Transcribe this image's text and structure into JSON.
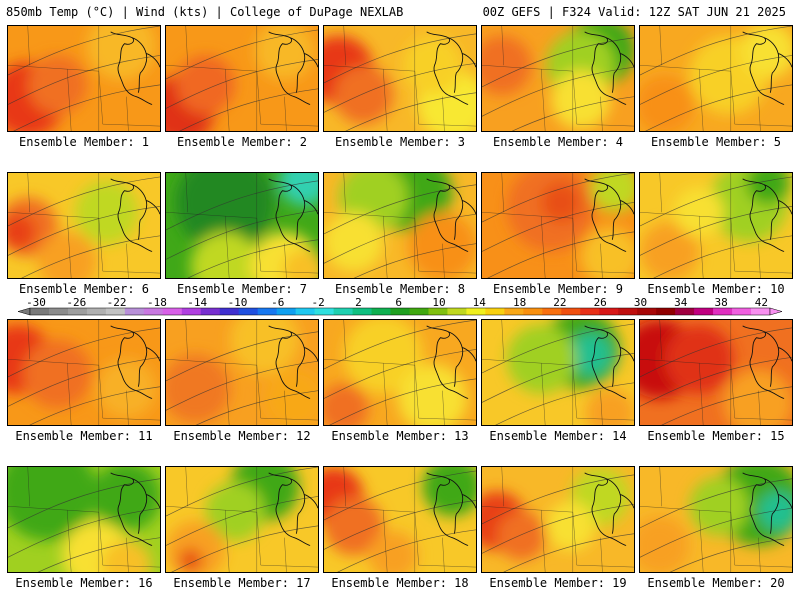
{
  "header": {
    "left": "850mb Temp (°C) | Wind (kts) | College of DuPage NEXLAB",
    "right": "00Z GEFS | F324 Valid: 12Z SAT JUN 21 2025"
  },
  "colorbar": {
    "ticks": [
      "-30",
      "-26",
      "-22",
      "-18",
      "-14",
      "-10",
      "-6",
      "-2",
      "2",
      "6",
      "10",
      "14",
      "18",
      "22",
      "26",
      "30",
      "34",
      "38",
      "42"
    ],
    "colors": [
      "#7a7a7a",
      "#8c8c8c",
      "#9e9e9e",
      "#b0b0b0",
      "#c2c2c2",
      "#b890d8",
      "#c878e0",
      "#d860e8",
      "#b040e0",
      "#7830d0",
      "#4030d0",
      "#2050e0",
      "#1878f0",
      "#10a0f0",
      "#20c8f0",
      "#30e0e0",
      "#20d0b0",
      "#10c080",
      "#10b050",
      "#20a020",
      "#40a810",
      "#80c010",
      "#c0d820",
      "#f0f020",
      "#f8d010",
      "#f8a818",
      "#f89010",
      "#f87010",
      "#f05010",
      "#e83018",
      "#d81818",
      "#c01010",
      "#a80808",
      "#900000",
      "#a00040",
      "#c00080",
      "#e030c0",
      "#f060e0",
      "#f890f0"
    ]
  },
  "panels": [
    {
      "label": "Ensemble Member: 1",
      "base": "#f89818",
      "blobs": [
        {
          "c": "#e83818",
          "cx": 20,
          "cy": 75,
          "r": 38
        },
        {
          "c": "#f07020",
          "cx": 50,
          "cy": 60,
          "r": 30
        },
        {
          "c": "#f8b828",
          "cx": 115,
          "cy": 20,
          "r": 35
        }
      ]
    },
    {
      "label": "Ensemble Member: 2",
      "base": "#f89818",
      "blobs": [
        {
          "c": "#e03018",
          "cx": 15,
          "cy": 85,
          "r": 35
        },
        {
          "c": "#f06820",
          "cx": 40,
          "cy": 60,
          "r": 30
        },
        {
          "c": "#f8b828",
          "cx": 120,
          "cy": 25,
          "r": 30
        }
      ]
    },
    {
      "label": "Ensemble Member: 3",
      "base": "#f8b828",
      "blobs": [
        {
          "c": "#e83818",
          "cx": 15,
          "cy": 45,
          "r": 35
        },
        {
          "c": "#f07020",
          "cx": 40,
          "cy": 70,
          "r": 30
        },
        {
          "c": "#f8e830",
          "cx": 130,
          "cy": 80,
          "r": 35
        },
        {
          "c": "#f8d028",
          "cx": 110,
          "cy": 40,
          "r": 30
        }
      ]
    },
    {
      "label": "Ensemble Member: 4",
      "base": "#f8a020",
      "blobs": [
        {
          "c": "#40a818",
          "cx": 120,
          "cy": 25,
          "r": 35
        },
        {
          "c": "#a0d020",
          "cx": 100,
          "cy": 40,
          "r": 35
        },
        {
          "c": "#f8e030",
          "cx": 100,
          "cy": 75,
          "r": 30
        },
        {
          "c": "#f07020",
          "cx": 20,
          "cy": 40,
          "r": 30
        }
      ]
    },
    {
      "label": "Ensemble Member: 5",
      "base": "#f8a820",
      "blobs": [
        {
          "c": "#f8d028",
          "cx": 90,
          "cy": 50,
          "r": 40
        },
        {
          "c": "#f8e030",
          "cx": 130,
          "cy": 25,
          "r": 28
        },
        {
          "c": "#f89018",
          "cx": 25,
          "cy": 80,
          "r": 30
        }
      ]
    },
    {
      "label": "Ensemble Member: 6",
      "base": "#f8c828",
      "blobs": [
        {
          "c": "#f07020",
          "cx": 20,
          "cy": 55,
          "r": 30
        },
        {
          "c": "#e84018",
          "cx": 10,
          "cy": 60,
          "r": 18
        },
        {
          "c": "#c0d820",
          "cx": 100,
          "cy": 40,
          "r": 32
        },
        {
          "c": "#f8a020",
          "cx": 60,
          "cy": 90,
          "r": 30
        }
      ]
    },
    {
      "label": "Ensemble Member: 7",
      "base": "#40a818",
      "blobs": [
        {
          "c": "#208820",
          "cx": 60,
          "cy": 30,
          "r": 50
        },
        {
          "c": "#30d0b0",
          "cx": 140,
          "cy": 8,
          "r": 25
        },
        {
          "c": "#c0d820",
          "cx": 60,
          "cy": 95,
          "r": 35
        },
        {
          "c": "#f8e030",
          "cx": 120,
          "cy": 95,
          "r": 35
        },
        {
          "c": "#f8c028",
          "cx": 140,
          "cy": 100,
          "r": 22
        }
      ]
    },
    {
      "label": "Ensemble Member: 8",
      "base": "#f8b828",
      "blobs": [
        {
          "c": "#40a818",
          "cx": 90,
          "cy": 20,
          "r": 40
        },
        {
          "c": "#a0d020",
          "cx": 50,
          "cy": 25,
          "r": 35
        },
        {
          "c": "#f8e030",
          "cx": 30,
          "cy": 70,
          "r": 30
        },
        {
          "c": "#f89018",
          "cx": 120,
          "cy": 75,
          "r": 35
        }
      ]
    },
    {
      "label": "Ensemble Member: 9",
      "base": "#f89018",
      "blobs": [
        {
          "c": "#f07020",
          "cx": 70,
          "cy": 35,
          "r": 45
        },
        {
          "c": "#e85018",
          "cx": 80,
          "cy": 30,
          "r": 20
        },
        {
          "c": "#c0d820",
          "cx": 135,
          "cy": 15,
          "r": 25
        },
        {
          "c": "#f8c028",
          "cx": 130,
          "cy": 85,
          "r": 30
        }
      ]
    },
    {
      "label": "Ensemble Member: 10",
      "base": "#f8c828",
      "blobs": [
        {
          "c": "#a0d020",
          "cx": 110,
          "cy": 30,
          "r": 40
        },
        {
          "c": "#40a818",
          "cx": 130,
          "cy": 10,
          "r": 22
        },
        {
          "c": "#f8a020",
          "cx": 30,
          "cy": 80,
          "r": 30
        },
        {
          "c": "#f8e030",
          "cx": 60,
          "cy": 40,
          "r": 25
        }
      ]
    },
    {
      "label": "Ensemble Member: 11",
      "base": "#f89818",
      "blobs": [
        {
          "c": "#e83818",
          "cx": 10,
          "cy": 40,
          "r": 35
        },
        {
          "c": "#f07020",
          "cx": 50,
          "cy": 55,
          "r": 35
        },
        {
          "c": "#f8b028",
          "cx": 120,
          "cy": 70,
          "r": 30
        }
      ]
    },
    {
      "label": "Ensemble Member: 12",
      "base": "#f8a020",
      "blobs": [
        {
          "c": "#f07820",
          "cx": 30,
          "cy": 70,
          "r": 35
        },
        {
          "c": "#f8c028",
          "cx": 100,
          "cy": 20,
          "r": 35
        },
        {
          "c": "#f8a818",
          "cx": 130,
          "cy": 80,
          "r": 30
        }
      ]
    },
    {
      "label": "Ensemble Member: 13",
      "base": "#f8a820",
      "blobs": [
        {
          "c": "#f8d028",
          "cx": 60,
          "cy": 35,
          "r": 40
        },
        {
          "c": "#f8e030",
          "cx": 110,
          "cy": 80,
          "r": 35
        },
        {
          "c": "#f07020",
          "cx": 20,
          "cy": 90,
          "r": 25
        }
      ]
    },
    {
      "label": "Ensemble Member: 14",
      "base": "#f8c828",
      "blobs": [
        {
          "c": "#40a818",
          "cx": 100,
          "cy": 30,
          "r": 40
        },
        {
          "c": "#20c090",
          "cx": 110,
          "cy": 35,
          "r": 22
        },
        {
          "c": "#a0d020",
          "cx": 60,
          "cy": 40,
          "r": 35
        },
        {
          "c": "#f8a020",
          "cx": 130,
          "cy": 95,
          "r": 25
        }
      ]
    },
    {
      "label": "Ensemble Member: 15",
      "base": "#f07020",
      "blobs": [
        {
          "c": "#c81010",
          "cx": 20,
          "cy": 40,
          "r": 40
        },
        {
          "c": "#e03018",
          "cx": 60,
          "cy": 40,
          "r": 35
        },
        {
          "c": "#f8a020",
          "cx": 120,
          "cy": 85,
          "r": 35
        }
      ]
    },
    {
      "label": "Ensemble Member: 16",
      "base": "#a0d020",
      "blobs": [
        {
          "c": "#40a818",
          "cx": 40,
          "cy": 25,
          "r": 50
        },
        {
          "c": "#40a818",
          "cx": 120,
          "cy": 30,
          "r": 35
        },
        {
          "c": "#f8e030",
          "cx": 90,
          "cy": 90,
          "r": 35
        },
        {
          "c": "#f8c028",
          "cx": 120,
          "cy": 100,
          "r": 25
        }
      ]
    },
    {
      "label": "Ensemble Member: 17",
      "base": "#f8c828",
      "blobs": [
        {
          "c": "#40a818",
          "cx": 100,
          "cy": 20,
          "r": 35
        },
        {
          "c": "#a0d020",
          "cx": 70,
          "cy": 45,
          "r": 30
        },
        {
          "c": "#f8a020",
          "cx": 30,
          "cy": 85,
          "r": 30
        },
        {
          "c": "#e85018",
          "cx": 25,
          "cy": 95,
          "r": 12
        }
      ]
    },
    {
      "label": "Ensemble Member: 18",
      "base": "#f8c828",
      "blobs": [
        {
          "c": "#e83818",
          "cx": 10,
          "cy": 30,
          "r": 30
        },
        {
          "c": "#f07020",
          "cx": 30,
          "cy": 60,
          "r": 30
        },
        {
          "c": "#40a818",
          "cx": 130,
          "cy": 20,
          "r": 30
        },
        {
          "c": "#f8a020",
          "cx": 70,
          "cy": 90,
          "r": 25
        }
      ]
    },
    {
      "label": "Ensemble Member: 19",
      "base": "#f8b828",
      "blobs": [
        {
          "c": "#e84018",
          "cx": 15,
          "cy": 55,
          "r": 30
        },
        {
          "c": "#f07020",
          "cx": 40,
          "cy": 70,
          "r": 25
        },
        {
          "c": "#c0d820",
          "cx": 120,
          "cy": 30,
          "r": 30
        },
        {
          "c": "#f8e030",
          "cx": 90,
          "cy": 60,
          "r": 25
        }
      ]
    },
    {
      "label": "Ensemble Member: 20",
      "base": "#f8b828",
      "blobs": [
        {
          "c": "#40a818",
          "cx": 120,
          "cy": 35,
          "r": 45
        },
        {
          "c": "#20c090",
          "cx": 140,
          "cy": 45,
          "r": 20
        },
        {
          "c": "#a0d020",
          "cx": 80,
          "cy": 40,
          "r": 30
        },
        {
          "c": "#f8a020",
          "cx": 20,
          "cy": 80,
          "r": 30
        }
      ]
    }
  ]
}
